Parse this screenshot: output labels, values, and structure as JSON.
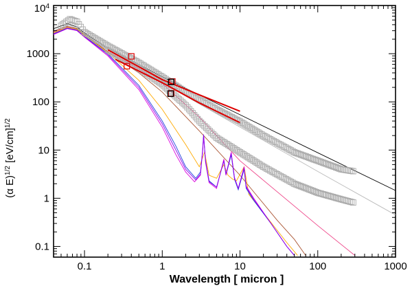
{
  "chart_data": {
    "type": "line",
    "xscale": "log",
    "yscale": "log",
    "xlim": [
      0.04,
      1000
    ],
    "ylim": [
      0.06,
      10000
    ],
    "xlabel": "Wavelength [ micron ]",
    "ylabel": {
      "prefix": "(α E)",
      "sup1": "1/2",
      "mid": " [eV/cm]",
      "sup2": "1/2"
    },
    "x_ticks": [
      {
        "value": 0.1,
        "label": "0.1"
      },
      {
        "value": 1,
        "label": "1"
      },
      {
        "value": 10,
        "label": "10"
      },
      {
        "value": 100,
        "label": "100"
      },
      {
        "value": 1000,
        "label": "1000"
      }
    ],
    "y_ticks": [
      {
        "value": 0.1,
        "label": "0.1"
      },
      {
        "value": 1,
        "label": "1"
      },
      {
        "value": 10,
        "label": "10"
      },
      {
        "value": 100,
        "label": "100"
      },
      {
        "value": 1000,
        "label": "1000"
      },
      {
        "value": 10000,
        "label": "10",
        "sup": "4"
      }
    ],
    "colors": {
      "black": "#000000",
      "gray": "#aaaaaa",
      "red": "#dd0000",
      "magenta": "#dd00dd",
      "violet": "#8800ee",
      "blue": "#2244dd",
      "orange": "#ffaa00",
      "brown": "#aa5533",
      "pink": "#ee4488",
      "lightgray": "#bbbbbb"
    },
    "series": [
      {
        "color": "black",
        "width": 0.9,
        "points": [
          [
            0.04,
            3300
          ],
          [
            0.06,
            4200
          ],
          [
            0.08,
            3600
          ],
          [
            0.1,
            2700
          ],
          [
            0.2,
            1300
          ],
          [
            1,
            330
          ],
          [
            10,
            54
          ],
          [
            100,
            8.8
          ],
          [
            1000,
            1.45
          ]
        ]
      },
      {
        "color": "lightgray",
        "width": 0.9,
        "points": [
          [
            0.04,
            3000
          ],
          [
            0.06,
            3900
          ],
          [
            0.08,
            3400
          ],
          [
            0.1,
            2600
          ],
          [
            0.2,
            1200
          ],
          [
            1,
            250
          ],
          [
            10,
            30
          ],
          [
            100,
            3.6
          ],
          [
            1000,
            0.45
          ]
        ]
      },
      {
        "color": "pink",
        "width": 0.9,
        "points": [
          [
            0.04,
            2800
          ],
          [
            0.06,
            3600
          ],
          [
            0.08,
            3300
          ],
          [
            0.1,
            2400
          ],
          [
            0.2,
            1100
          ],
          [
            0.5,
            480
          ],
          [
            1,
            240
          ],
          [
            3,
            48
          ],
          [
            10,
            6
          ],
          [
            100,
            0.27
          ],
          [
            300,
            0.065
          ]
        ]
      },
      {
        "color": "brown",
        "width": 0.9,
        "points": [
          [
            0.04,
            2900
          ],
          [
            0.06,
            3700
          ],
          [
            0.08,
            3300
          ],
          [
            0.1,
            2500
          ],
          [
            0.2,
            1100
          ],
          [
            0.5,
            400
          ],
          [
            1,
            160
          ],
          [
            3,
            25
          ],
          [
            10,
            3
          ],
          [
            30,
            0.35
          ],
          [
            50,
            0.14
          ],
          [
            70,
            0.065
          ]
        ]
      },
      {
        "color": "orange",
        "width": 0.9,
        "points": [
          [
            0.04,
            2700
          ],
          [
            0.06,
            3500
          ],
          [
            0.08,
            3200
          ],
          [
            0.1,
            2400
          ],
          [
            0.2,
            1050
          ],
          [
            0.5,
            280
          ],
          [
            1,
            70
          ],
          [
            2,
            13
          ],
          [
            3,
            4.5
          ],
          [
            3.5,
            9
          ],
          [
            4,
            3
          ],
          [
            5,
            2.6
          ],
          [
            6.2,
            5
          ],
          [
            7,
            3
          ],
          [
            8,
            2.5
          ],
          [
            9,
            2.3
          ],
          [
            11.3,
            4.5
          ],
          [
            13,
            1.2
          ],
          [
            20,
            0.5
          ],
          [
            40,
            0.12
          ],
          [
            55,
            0.065
          ]
        ]
      },
      {
        "color": "blue",
        "width": 0.9,
        "points": [
          [
            0.04,
            2600
          ],
          [
            0.06,
            3400
          ],
          [
            0.08,
            3100
          ],
          [
            0.1,
            2300
          ],
          [
            0.2,
            1000
          ],
          [
            0.5,
            220
          ],
          [
            1,
            40
          ],
          [
            1.5,
            12
          ],
          [
            2,
            4.5
          ],
          [
            2.7,
            2.6
          ],
          [
            3.1,
            3.5
          ],
          [
            3.3,
            9
          ],
          [
            3.4,
            20
          ],
          [
            3.6,
            6
          ],
          [
            4,
            2.3
          ],
          [
            5,
            1.7
          ],
          [
            6.2,
            6
          ],
          [
            6.6,
            3
          ],
          [
            7.7,
            8
          ],
          [
            8.5,
            2.5
          ],
          [
            9.5,
            1.5
          ],
          [
            11.3,
            4
          ],
          [
            12,
            1.6
          ],
          [
            15,
            0.9
          ],
          [
            25,
            0.3
          ],
          [
            40,
            0.1
          ],
          [
            50,
            0.065
          ]
        ]
      },
      {
        "color": "magenta",
        "width": 0.9,
        "points": [
          [
            0.04,
            2500
          ],
          [
            0.06,
            3300
          ],
          [
            0.08,
            3000
          ],
          [
            0.1,
            2200
          ],
          [
            0.2,
            900
          ],
          [
            0.5,
            180
          ],
          [
            1,
            30
          ],
          [
            1.5,
            8
          ],
          [
            2,
            3.5
          ],
          [
            2.6,
            2.2
          ],
          [
            3.1,
            3
          ],
          [
            3.3,
            9
          ],
          [
            3.4,
            20
          ],
          [
            3.6,
            5.5
          ],
          [
            4,
            2.1
          ],
          [
            5,
            1.6
          ],
          [
            6.2,
            6.5
          ],
          [
            6.6,
            3
          ],
          [
            7.7,
            9
          ],
          [
            8.5,
            2.7
          ],
          [
            9.5,
            1.6
          ],
          [
            11.3,
            4.5
          ],
          [
            12,
            1.8
          ],
          [
            15,
            1
          ],
          [
            25,
            0.3
          ],
          [
            40,
            0.1
          ],
          [
            50,
            0.065
          ]
        ]
      },
      {
        "color": "violet",
        "width": 0.9,
        "points": [
          [
            0.04,
            2550
          ],
          [
            0.06,
            3350
          ],
          [
            0.08,
            3050
          ],
          [
            0.1,
            2250
          ],
          [
            0.2,
            950
          ],
          [
            0.5,
            200
          ],
          [
            1,
            35
          ],
          [
            1.5,
            10
          ],
          [
            2,
            4
          ],
          [
            2.7,
            2.4
          ],
          [
            3.1,
            3.2
          ],
          [
            3.3,
            10
          ],
          [
            3.4,
            21
          ],
          [
            3.6,
            6
          ],
          [
            4,
            2.2
          ],
          [
            5,
            1.7
          ],
          [
            6.2,
            6
          ],
          [
            6.6,
            3.2
          ],
          [
            7.7,
            8.5
          ],
          [
            8.5,
            2.6
          ],
          [
            9.5,
            1.6
          ],
          [
            11.3,
            4.2
          ],
          [
            12,
            1.7
          ],
          [
            15,
            0.95
          ],
          [
            25,
            0.3
          ],
          [
            40,
            0.1
          ],
          [
            50,
            0.065
          ]
        ]
      }
    ],
    "symbol_series": [
      {
        "name": "",
        "color": "gray",
        "size": 8,
        "points": [
          [
            0.05,
            3800
          ],
          [
            0.065,
            5200
          ],
          [
            0.08,
            4600
          ],
          [
            0.1,
            2800
          ],
          [
            0.2,
            1450
          ],
          [
            0.5,
            650
          ],
          [
            1,
            330
          ],
          [
            2,
            160
          ],
          [
            5,
            70
          ],
          [
            10,
            39
          ],
          [
            20,
            20
          ],
          [
            50,
            9
          ],
          [
            100,
            6
          ],
          [
            200,
            4
          ],
          [
            300,
            3.6
          ]
        ]
      },
      {
        "name": "",
        "color": "gray",
        "size": 8,
        "points": [
          [
            0.2,
            1200
          ],
          [
            0.5,
            500
          ],
          [
            1,
            230
          ],
          [
            2,
            85
          ],
          [
            3,
            40
          ],
          [
            5,
            18
          ],
          [
            10,
            9
          ],
          [
            20,
            4.5
          ],
          [
            50,
            2
          ],
          [
            100,
            1.3
          ],
          [
            200,
            0.95
          ],
          [
            300,
            0.8
          ]
        ]
      }
    ],
    "red_lines": [
      {
        "color": "red",
        "width": 2,
        "points": [
          [
            0.2,
            1200
          ],
          [
            1,
            290
          ],
          [
            3,
            140
          ],
          [
            10,
            64
          ]
        ]
      },
      {
        "color": "red",
        "width": 2,
        "points": [
          [
            0.25,
            760
          ],
          [
            1,
            250
          ],
          [
            3,
            95
          ],
          [
            10,
            37
          ]
        ]
      }
    ],
    "red_markers": [
      {
        "x": 0.4,
        "y": 880
      },
      {
        "x": 0.35,
        "y": 550
      },
      {
        "x": 1.35,
        "y": 265
      },
      {
        "x": 1.3,
        "y": 150
      }
    ],
    "black_markers": [
      {
        "x": 1.3,
        "y": 260
      },
      {
        "x": 1.28,
        "y": 148
      }
    ]
  }
}
